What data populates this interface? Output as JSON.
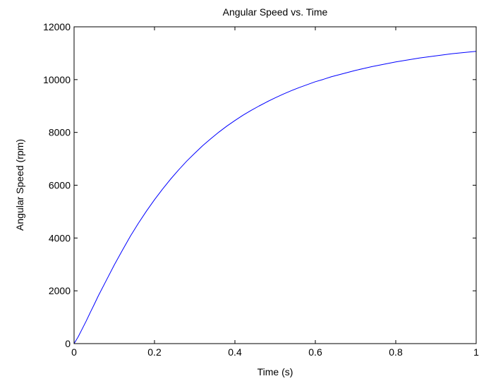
{
  "chart_data": {
    "type": "line",
    "title": "Angular Speed vs. Time",
    "xlabel": "Time (s)",
    "ylabel": "Angular Speed (rpm)",
    "xlim": [
      0,
      1
    ],
    "ylim": [
      0,
      12000
    ],
    "xticks": [
      0,
      0.2,
      0.4,
      0.6,
      0.8,
      1
    ],
    "xtick_labels": [
      "0",
      "0.2",
      "0.4",
      "0.6",
      "0.8",
      "1"
    ],
    "yticks": [
      0,
      2000,
      4000,
      6000,
      8000,
      10000,
      12000
    ],
    "ytick_labels": [
      "0",
      "2000",
      "4000",
      "6000",
      "8000",
      "10000",
      "12000"
    ],
    "grid": false,
    "box": true,
    "series": [
      {
        "color": "#0000ff",
        "x": [
          0,
          0.01,
          0.02,
          0.03,
          0.04,
          0.05,
          0.06,
          0.08,
          0.1,
          0.12,
          0.14,
          0.16,
          0.18,
          0.2,
          0.22,
          0.24,
          0.26,
          0.28,
          0.3,
          0.32,
          0.34,
          0.36,
          0.38,
          0.4,
          0.42,
          0.44,
          0.46,
          0.48,
          0.5,
          0.52,
          0.54,
          0.56,
          0.58,
          0.6,
          0.62,
          0.64,
          0.66,
          0.68,
          0.7,
          0.72,
          0.74,
          0.76,
          0.78,
          0.8,
          0.82,
          0.84,
          0.86,
          0.88,
          0.9,
          0.92,
          0.94,
          0.96,
          0.98,
          1.0
        ],
        "y": [
          0,
          250,
          550,
          850,
          1170,
          1480,
          1800,
          2390,
          2980,
          3530,
          4070,
          4560,
          5020,
          5450,
          5850,
          6230,
          6580,
          6910,
          7210,
          7500,
          7760,
          8010,
          8240,
          8450,
          8650,
          8830,
          9000,
          9160,
          9310,
          9450,
          9580,
          9700,
          9810,
          9920,
          10010,
          10110,
          10190,
          10270,
          10350,
          10420,
          10490,
          10550,
          10610,
          10670,
          10720,
          10770,
          10820,
          10860,
          10900,
          10940,
          10980,
          11010,
          11040,
          11070
        ]
      }
    ]
  }
}
